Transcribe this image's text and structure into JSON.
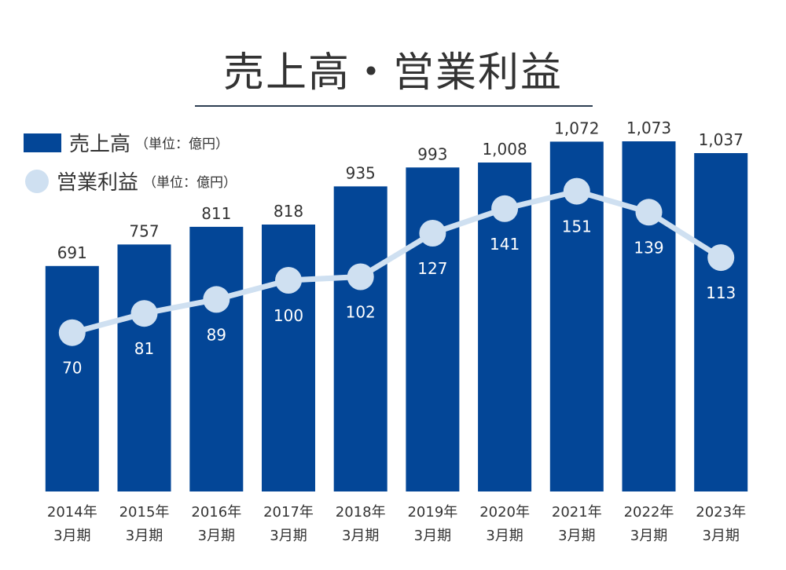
{
  "title": "売上高・営業利益",
  "legend": [
    {
      "name": "売上高",
      "unit": "（単位：億円）"
    },
    {
      "name": "営業利益",
      "unit": "（単位：億円）"
    }
  ],
  "colors": {
    "bar": "#034697",
    "line": "#cfe0f1",
    "text": "#333333",
    "rule": "#2d3f52"
  },
  "chart_data": {
    "type": "bar",
    "categories": [
      [
        "2014年",
        "3月期"
      ],
      [
        "2015年",
        "3月期"
      ],
      [
        "2016年",
        "3月期"
      ],
      [
        "2017年",
        "3月期"
      ],
      [
        "2018年",
        "3月期"
      ],
      [
        "2019年",
        "3月期"
      ],
      [
        "2020年",
        "3月期"
      ],
      [
        "2021年",
        "3月期"
      ],
      [
        "2022年",
        "3月期"
      ],
      [
        "2023年",
        "3月期"
      ]
    ],
    "series": [
      {
        "name": "売上高",
        "type": "bar",
        "values": [
          691,
          757,
          811,
          818,
          935,
          993,
          1008,
          1072,
          1073,
          1037
        ],
        "labels": [
          "691",
          "757",
          "811",
          "818",
          "935",
          "993",
          "1,008",
          "1,072",
          "1,073",
          "1,037"
        ]
      },
      {
        "name": "営業利益",
        "type": "line",
        "values": [
          70,
          81,
          89,
          100,
          102,
          127,
          141,
          151,
          139,
          113
        ],
        "labels": [
          "70",
          "81",
          "89",
          "100",
          "102",
          "127",
          "141",
          "151",
          "139",
          "113"
        ]
      }
    ],
    "bar_ylim": [
      0,
      1150
    ],
    "line_ylim": [
      -21,
      194
    ],
    "grid": false,
    "legend_position": "top-left"
  }
}
